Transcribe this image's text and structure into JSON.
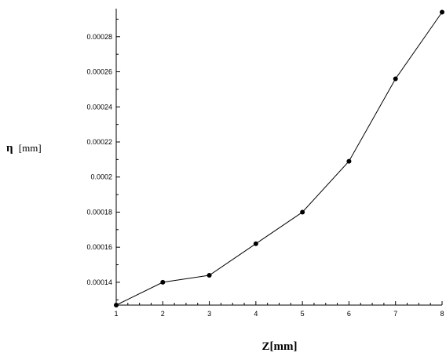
{
  "chart_data": {
    "type": "line",
    "xlabel": "Z[mm]",
    "ylabel_symbol": "η",
    "ylabel_unit": "[mm]",
    "x": [
      1,
      2,
      3,
      4,
      5,
      6,
      7,
      8
    ],
    "series": [
      {
        "values": [
          0.000127,
          0.00014,
          0.000144,
          0.000162,
          0.00018,
          0.000209,
          0.000256,
          0.000294
        ]
      }
    ],
    "xlim": [
      1,
      8
    ],
    "ylim": [
      0.000127,
      0.000296
    ],
    "x_ticks": [
      1,
      2,
      3,
      4,
      5,
      6,
      7,
      8
    ],
    "y_ticks": [
      0.00014,
      0.00016,
      0.00018,
      0.0002,
      0.00022,
      0.00024,
      0.00026,
      0.00028
    ],
    "x_tick_labels": [
      "1",
      "2",
      "3",
      "4",
      "5",
      "6",
      "7",
      "8"
    ],
    "y_tick_labels": [
      "0.00014",
      "0.00016",
      "0.00018",
      "0.0002",
      "0.00022",
      "0.00024",
      "0.00026",
      "0.00028"
    ],
    "grid": false,
    "legend": "none",
    "line_color": "#000000",
    "marker_color": "#000000"
  }
}
